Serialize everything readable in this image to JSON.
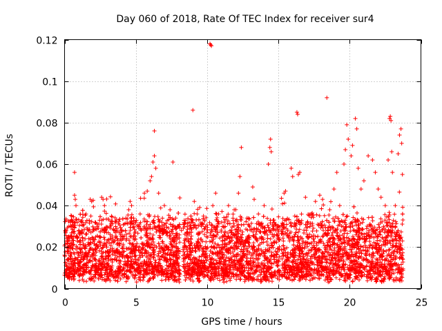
{
  "chart_data": {
    "type": "scatter",
    "title": "Day 060 of 2018, Rate Of TEC Index for receiver sur4",
    "xlabel": "GPS time / hours",
    "ylabel": "ROTI / TECUs",
    "xlim": [
      0,
      25
    ],
    "ylim": [
      0,
      0.12
    ],
    "xticks": [
      0,
      5,
      10,
      15,
      20,
      25
    ],
    "xtick_labels": [
      "0",
      "5",
      "10",
      "15",
      "20",
      "25"
    ],
    "yticks": [
      0,
      0.02,
      0.04,
      0.06,
      0.08,
      0.1,
      0.12
    ],
    "ytick_labels": [
      "0",
      "0.02",
      "0.04",
      "0.06",
      "0.08",
      "0.1",
      "0.12"
    ],
    "grid": true,
    "marker": "+",
    "color": "#ff0000",
    "series": [
      {
        "name": "ROTI",
        "points": [
          [
            0.1,
            0.033
          ],
          [
            0.3,
            0.03
          ],
          [
            0.5,
            0.035
          ],
          [
            0.7,
            0.045
          ],
          [
            0.75,
            0.043
          ],
          [
            0.8,
            0.04
          ],
          [
            0.7,
            0.056
          ],
          [
            1.2,
            0.028
          ],
          [
            1.5,
            0.036
          ],
          [
            1.8,
            0.043
          ],
          [
            1.9,
            0.042
          ],
          [
            2.3,
            0.03
          ],
          [
            2.6,
            0.044
          ],
          [
            2.7,
            0.043
          ],
          [
            2.8,
            0.04
          ],
          [
            3.2,
            0.03
          ],
          [
            3.6,
            0.032
          ],
          [
            4.0,
            0.028
          ],
          [
            4.3,
            0.034
          ],
          [
            4.5,
            0.038
          ],
          [
            4.6,
            0.042
          ],
          [
            4.7,
            0.04
          ],
          [
            5.0,
            0.032
          ],
          [
            5.3,
            0.036
          ],
          [
            5.6,
            0.046
          ],
          [
            5.8,
            0.047
          ],
          [
            6.0,
            0.052
          ],
          [
            6.1,
            0.054
          ],
          [
            6.2,
            0.061
          ],
          [
            6.3,
            0.064
          ],
          [
            6.3,
            0.076
          ],
          [
            6.4,
            0.058
          ],
          [
            6.6,
            0.046
          ],
          [
            7.0,
            0.04
          ],
          [
            7.4,
            0.038
          ],
          [
            7.6,
            0.061
          ],
          [
            7.8,
            0.034
          ],
          [
            8.2,
            0.028
          ],
          [
            8.6,
            0.03
          ],
          [
            8.9,
            0.032
          ],
          [
            9.1,
            0.042
          ],
          [
            9.0,
            0.086
          ],
          [
            9.3,
            0.036
          ],
          [
            9.6,
            0.03
          ],
          [
            10.2,
            0.118
          ],
          [
            10.3,
            0.117
          ],
          [
            10.25,
            0.1175
          ],
          [
            10.4,
            0.04
          ],
          [
            10.6,
            0.046
          ],
          [
            10.8,
            0.036
          ],
          [
            11.2,
            0.032
          ],
          [
            11.5,
            0.04
          ],
          [
            11.9,
            0.038
          ],
          [
            12.2,
            0.046
          ],
          [
            12.4,
            0.068
          ],
          [
            12.3,
            0.054
          ],
          [
            12.8,
            0.034
          ],
          [
            13.2,
            0.049
          ],
          [
            13.3,
            0.043
          ],
          [
            13.6,
            0.036
          ],
          [
            14.0,
            0.04
          ],
          [
            14.3,
            0.06
          ],
          [
            14.4,
            0.068
          ],
          [
            14.45,
            0.072
          ],
          [
            14.5,
            0.066
          ],
          [
            14.7,
            0.032
          ],
          [
            15.0,
            0.03
          ],
          [
            15.4,
            0.046
          ],
          [
            15.5,
            0.047
          ],
          [
            15.9,
            0.058
          ],
          [
            16.0,
            0.054
          ],
          [
            16.3,
            0.085
          ],
          [
            16.35,
            0.084
          ],
          [
            16.4,
            0.055
          ],
          [
            16.5,
            0.056
          ],
          [
            16.9,
            0.044
          ],
          [
            17.3,
            0.036
          ],
          [
            17.6,
            0.042
          ],
          [
            17.9,
            0.045
          ],
          [
            18.1,
            0.043
          ],
          [
            18.4,
            0.092
          ],
          [
            18.6,
            0.038
          ],
          [
            18.9,
            0.048
          ],
          [
            19.1,
            0.056
          ],
          [
            19.3,
            0.04
          ],
          [
            19.6,
            0.06
          ],
          [
            19.7,
            0.067
          ],
          [
            19.8,
            0.079
          ],
          [
            19.9,
            0.072
          ],
          [
            20.1,
            0.064
          ],
          [
            20.2,
            0.069
          ],
          [
            20.4,
            0.082
          ],
          [
            20.5,
            0.077
          ],
          [
            20.6,
            0.058
          ],
          [
            20.8,
            0.048
          ],
          [
            21.0,
            0.052
          ],
          [
            21.3,
            0.064
          ],
          [
            21.6,
            0.062
          ],
          [
            21.8,
            0.056
          ],
          [
            22.0,
            0.048
          ],
          [
            22.2,
            0.044
          ],
          [
            22.5,
            0.04
          ],
          [
            22.7,
            0.062
          ],
          [
            22.8,
            0.082
          ],
          [
            22.85,
            0.083
          ],
          [
            22.9,
            0.081
          ],
          [
            22.95,
            0.066
          ],
          [
            23.0,
            0.056
          ],
          [
            23.2,
            0.04
          ],
          [
            23.4,
            0.065
          ],
          [
            23.5,
            0.074
          ],
          [
            23.6,
            0.077
          ],
          [
            23.65,
            0.07
          ],
          [
            23.7,
            0.055
          ]
        ]
      }
    ]
  }
}
